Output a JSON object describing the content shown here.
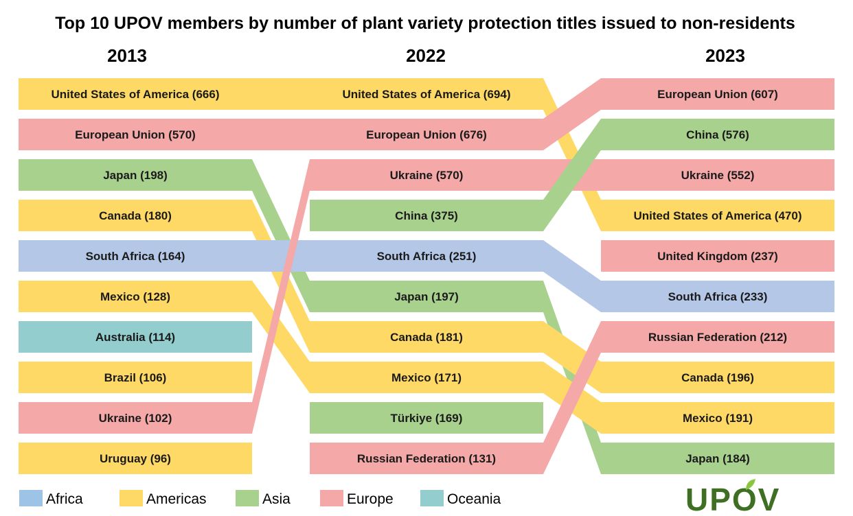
{
  "chart_data": {
    "type": "bump",
    "title": "Top 10 UPOV members by number of plant variety protection titles issued to non-residents",
    "years": [
      "2013",
      "2022",
      "2023"
    ],
    "region_colors": {
      "Africa": "#b4c7e7",
      "Americas": "#ffd966",
      "Asia": "#a9d18e",
      "Europe": "#f4a8a8",
      "Oceania": "#93cdcd"
    },
    "legend_colors": {
      "Africa": "#9dc3e6",
      "Americas": "#ffd966",
      "Asia": "#a9d18e",
      "Europe": "#f4a8a8",
      "Oceania": "#93cdcd"
    },
    "legend": [
      "Africa",
      "Americas",
      "Asia",
      "Europe",
      "Oceania"
    ],
    "series": [
      {
        "name": "United States of America",
        "region": "Americas",
        "values": [
          666,
          694,
          470
        ],
        "ranks": [
          1,
          1,
          4
        ]
      },
      {
        "name": "European Union",
        "region": "Europe",
        "values": [
          570,
          676,
          607
        ],
        "ranks": [
          2,
          2,
          1
        ]
      },
      {
        "name": "Japan",
        "region": "Asia",
        "values": [
          198,
          197,
          184
        ],
        "ranks": [
          3,
          6,
          10
        ]
      },
      {
        "name": "Canada",
        "region": "Americas",
        "values": [
          180,
          181,
          196
        ],
        "ranks": [
          4,
          7,
          8
        ]
      },
      {
        "name": "South Africa",
        "region": "Africa",
        "values": [
          164,
          251,
          233
        ],
        "ranks": [
          5,
          5,
          6
        ]
      },
      {
        "name": "Mexico",
        "region": "Americas",
        "values": [
          128,
          171,
          191
        ],
        "ranks": [
          6,
          8,
          9
        ]
      },
      {
        "name": "Australia",
        "region": "Oceania",
        "values": [
          114,
          null,
          null
        ],
        "ranks": [
          7,
          null,
          null
        ]
      },
      {
        "name": "Brazil",
        "region": "Americas",
        "values": [
          106,
          null,
          null
        ],
        "ranks": [
          8,
          null,
          null
        ]
      },
      {
        "name": "Ukraine",
        "region": "Europe",
        "values": [
          102,
          570,
          552
        ],
        "ranks": [
          9,
          3,
          3
        ]
      },
      {
        "name": "Uruguay",
        "region": "Americas",
        "values": [
          96,
          null,
          null
        ],
        "ranks": [
          10,
          null,
          null
        ]
      },
      {
        "name": "China",
        "region": "Asia",
        "values": [
          null,
          375,
          576
        ],
        "ranks": [
          null,
          4,
          2
        ]
      },
      {
        "name": "Türkiye",
        "region": "Asia",
        "values": [
          null,
          169,
          null
        ],
        "ranks": [
          null,
          9,
          null
        ]
      },
      {
        "name": "Russian Federation",
        "region": "Europe",
        "values": [
          null,
          131,
          212
        ],
        "ranks": [
          null,
          10,
          7
        ]
      },
      {
        "name": "United Kingdom",
        "region": "Europe",
        "values": [
          null,
          null,
          237
        ],
        "ranks": [
          null,
          null,
          5
        ]
      }
    ]
  },
  "logo": {
    "text": "UPOV",
    "color": "#3e6f22",
    "leaf_color": "#8cc63f"
  }
}
